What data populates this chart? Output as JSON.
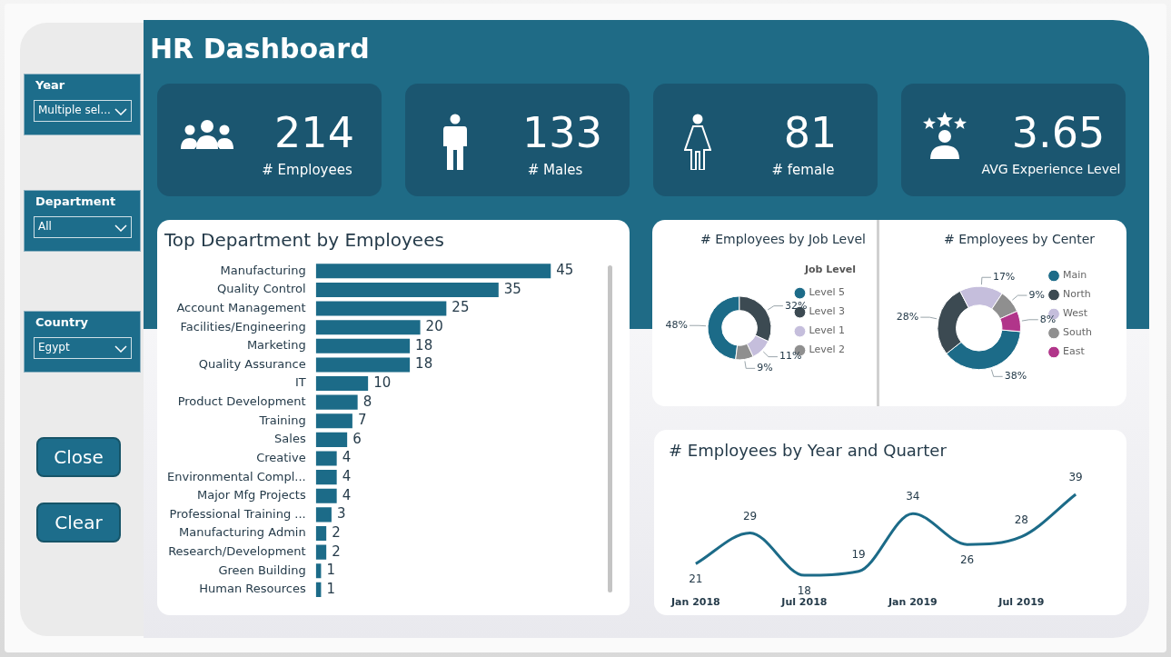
{
  "chart_data": [
    {
      "type": "other",
      "title": "HR Dashboard",
      "annotations": [
        "214",
        "# Employees",
        "133",
        "# Males",
        "81",
        "# female",
        "3.65",
        "AVG Experience Level",
        "Year",
        "Multiple sel...",
        "Department",
        "All",
        "Country",
        "Egypt",
        "Close",
        "Clear"
      ]
    },
    {
      "type": "bar",
      "orientation": "horizontal",
      "title": "Top Department by Employees",
      "categories": [
        "Manufacturing",
        "Quality Control",
        "Account Management",
        "Facilities/Engineering",
        "Marketing",
        "Quality Assurance",
        "IT",
        "Product Development",
        "Training",
        "Sales",
        "Creative",
        "Environmental Compl...",
        "Major Mfg Projects",
        "Professional Training ...",
        "Manufacturing Admin",
        "Research/Development",
        "Green Building",
        "Human Resources"
      ],
      "values": [
        45,
        35,
        25,
        20,
        18,
        18,
        10,
        8,
        7,
        6,
        4,
        4,
        4,
        3,
        2,
        2,
        1,
        1
      ],
      "color": "#1c6b88",
      "data_labels": true,
      "tick_labels": "y"
    },
    {
      "type": "donut",
      "title": "# Employees by Job Level",
      "categories": [
        "Level 5",
        "Level 3",
        "Level 1",
        "Level 2"
      ],
      "values": [
        48,
        32,
        11,
        9
      ],
      "value_labels": [
        "48%",
        "32%",
        "11%",
        "9%"
      ],
      "colors": [
        "#1c6b88",
        "#3c4a52",
        "#c5bedc",
        "#8f8f8f"
      ],
      "legend": "right",
      "legend_title": "Job Level"
    },
    {
      "type": "donut",
      "title": "# Employees by Center",
      "categories": [
        "Main",
        "North",
        "West",
        "South",
        "East"
      ],
      "values": [
        38,
        28,
        17,
        9,
        8
      ],
      "value_labels": [
        "38%",
        "28%",
        "17%",
        "9%",
        "8%"
      ],
      "colors": [
        "#1c6b88",
        "#3c4a52",
        "#c5bedc",
        "#8f8f8f",
        "#b1358a"
      ],
      "legend": "right"
    },
    {
      "type": "line",
      "title": "# Employees by Year and Quarter",
      "categories": [
        "Jan 2018",
        null,
        "Jul 2018",
        null,
        "Jan 2019",
        null,
        "Jul 2019",
        null
      ],
      "values": [
        21,
        29,
        18,
        19,
        34,
        26,
        28,
        39
      ],
      "color": "#1c6b88",
      "data_labels": true,
      "tick_labels": "x"
    }
  ]
}
